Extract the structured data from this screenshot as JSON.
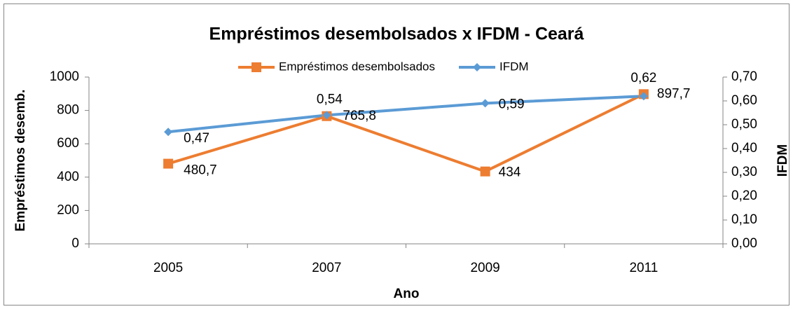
{
  "chart_data": {
    "type": "line",
    "title": "Empréstimos desembolsados x IFDM - Ceará",
    "x_label": "Ano",
    "y_label": "Empréstimos desemb.",
    "y2_label": "IFDM",
    "categories": [
      "2005",
      "2007",
      "2009",
      "2011"
    ],
    "series": [
      {
        "name": "Empréstimos desembolsados",
        "color": "#ed7d31",
        "marker": "square",
        "values": [
          480.7,
          765.8,
          434,
          897.7
        ],
        "value_labels": [
          "480,7",
          "765,8",
          "434",
          "897,7"
        ]
      },
      {
        "name": "IFDM",
        "color": "#5b9bd5",
        "marker": "diamond",
        "axis": "y2",
        "values": [
          0.47,
          0.54,
          0.59,
          0.62
        ],
        "value_labels": [
          "0,47",
          "0,54",
          "0,59",
          "0,62"
        ]
      }
    ],
    "ylim": [
      0,
      1000
    ],
    "yticks": [
      0,
      200,
      400,
      600,
      800,
      1000
    ],
    "y2lim": [
      0,
      0.7
    ],
    "y2ticks": [
      {
        "value": 0,
        "label": "0,00"
      },
      {
        "value": 0.1,
        "label": "0,10"
      },
      {
        "value": 0.2,
        "label": "0,20"
      },
      {
        "value": 0.3,
        "label": "0,30"
      },
      {
        "value": 0.4,
        "label": "0,40"
      },
      {
        "value": 0.5,
        "label": "0,50"
      },
      {
        "value": 0.6,
        "label": "0,60"
      },
      {
        "value": 0.7,
        "label": "0,70"
      }
    ],
    "legend": "top",
    "grid": false
  }
}
